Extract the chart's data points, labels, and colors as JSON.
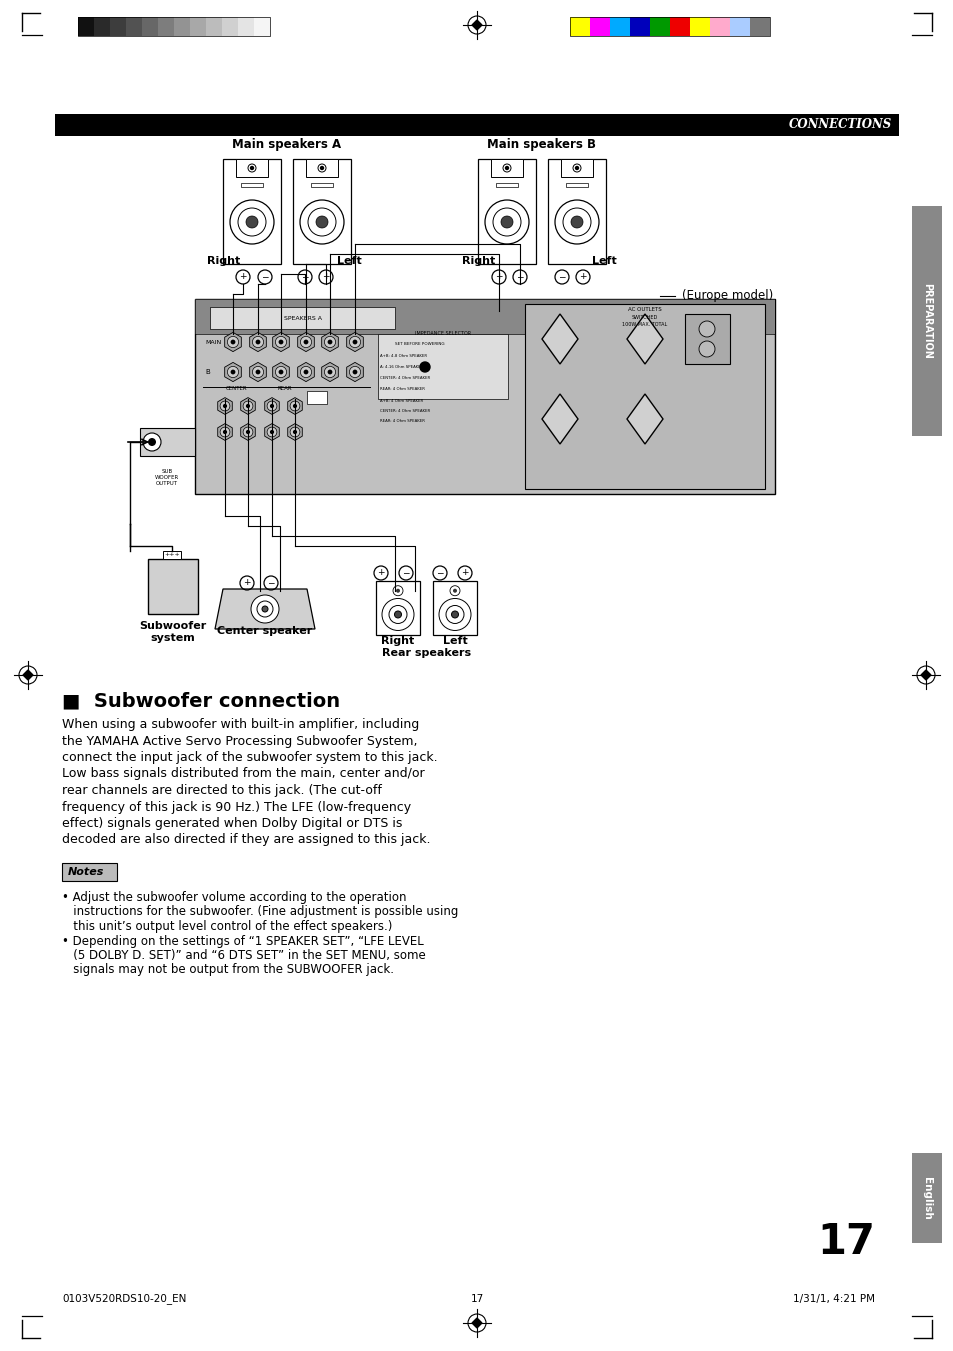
{
  "page_bg": "#ffffff",
  "page_number": "17",
  "footer_left": "0103V520RDS10-20_EN",
  "footer_center": "17",
  "footer_right": "1/31/1, 4:21 PM",
  "header_bar_color": "#000000",
  "header_text": "CONNECTIONS",
  "preparation_text": "PREPARATION",
  "english_text": "English",
  "section_title": "■  Subwoofer connection",
  "body_text_lines": [
    "When using a subwoofer with built-in amplifier, including",
    "the YAMAHA Active Servo Processing Subwoofer System,",
    "connect the input jack of the subwoofer system to this jack.",
    "Low bass signals distributed from the main, center and/or",
    "rear channels are directed to this jack. (The cut-off",
    "frequency of this jack is 90 Hz.) The LFE (low-frequency",
    "effect) signals generated when Dolby Digital or DTS is",
    "decoded are also directed if they are assigned to this jack."
  ],
  "notes_header": "Notes",
  "notes_lines": [
    "• Adjust the subwoofer volume according to the operation",
    "   instructions for the subwoofer. (Fine adjustment is possible using",
    "   this unit’s output level control of the effect speakers.)",
    "• Depending on the settings of “1 SPEAKER SET”, “LFE LEVEL",
    "   (5 DOLBY D. SET)” and “6 DTS SET” in the SET MENU, some",
    "   signals may not be output from the SUBWOOFER jack."
  ],
  "diagram_labels": {
    "main_speakers_a": "Main speakers A",
    "main_speakers_b": "Main speakers B",
    "right_a": "Right",
    "left_a": "Left",
    "right_b": "Right",
    "left_b": "Left",
    "europe_model": "(Europe model)",
    "subwoofer_system": "Subwoofer\nsystem",
    "center_speaker": "Center speaker",
    "rear_speakers": "Rear speakers",
    "right_rear": "Right",
    "left_rear": "Left"
  },
  "grayscale_colors": [
    "#111111",
    "#2a2a2a",
    "#3d3d3d",
    "#525252",
    "#676767",
    "#7d7d7d",
    "#939393",
    "#a8a8a8",
    "#bcbcbc",
    "#d0d0d0",
    "#e4e4e4",
    "#f5f5f5"
  ],
  "color_bars": [
    "#ffff00",
    "#ff00ff",
    "#00aaff",
    "#0000bb",
    "#009900",
    "#ee0000",
    "#ffff00",
    "#ffaacc",
    "#aaccff",
    "#777777"
  ],
  "margin_marks_color": "#000000"
}
